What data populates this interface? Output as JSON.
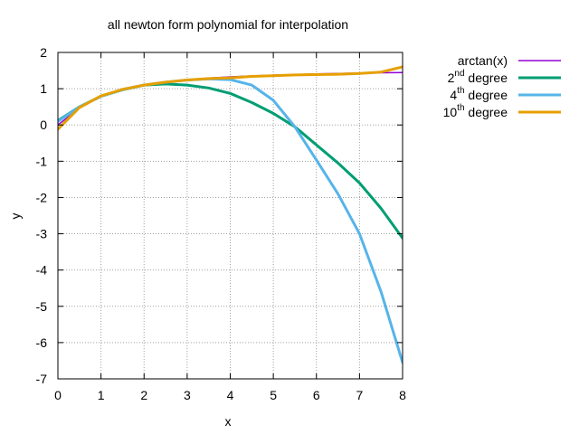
{
  "chart_data": {
    "type": "line",
    "title": "all newton form polynomial for interpolation",
    "xlabel": "x",
    "ylabel": "y",
    "xlim": [
      0,
      8
    ],
    "ylim": [
      -7,
      2
    ],
    "xticks": [
      0,
      1,
      2,
      3,
      4,
      5,
      6,
      7,
      8
    ],
    "yticks": [
      -7,
      -6,
      -5,
      -4,
      -3,
      -2,
      -1,
      0,
      1,
      2
    ],
    "grid": true,
    "legend_position": "right-outside",
    "series": [
      {
        "name": "arctan(x)",
        "legend": {
          "base": "arctan(x)",
          "sup": "",
          "rest": ""
        },
        "color": "#9400d3",
        "x": [
          0,
          0.5,
          1,
          1.5,
          2,
          2.5,
          3,
          3.5,
          4,
          4.5,
          5,
          5.5,
          6,
          6.5,
          7,
          7.5,
          8
        ],
        "y": [
          0,
          0.464,
          0.785,
          0.983,
          1.107,
          1.19,
          1.249,
          1.292,
          1.326,
          1.352,
          1.373,
          1.39,
          1.406,
          1.418,
          1.429,
          1.439,
          1.446
        ]
      },
      {
        "name": "2nd degree",
        "legend": {
          "base": "2",
          "sup": "nd",
          "rest": " degree"
        },
        "color": "#009e73",
        "x": [
          0,
          0.5,
          1,
          1.5,
          2,
          2.5,
          3,
          3.5,
          4,
          4.5,
          5,
          5.5,
          6,
          6.5,
          7,
          7.5,
          8
        ],
        "y": [
          0.12,
          0.5,
          0.79,
          0.97,
          1.1,
          1.13,
          1.1,
          1.02,
          0.87,
          0.62,
          0.32,
          -0.05,
          -0.55,
          -1.05,
          -1.6,
          -2.3,
          -3.12
        ]
      },
      {
        "name": "4th degree",
        "legend": {
          "base": "4",
          "sup": "th",
          "rest": " degree"
        },
        "color": "#56b4e9",
        "x": [
          0,
          0.5,
          1,
          1.5,
          2,
          2.5,
          3,
          3.5,
          4,
          4.5,
          5,
          5.5,
          6,
          6.5,
          7,
          7.5,
          8
        ],
        "y": [
          0.1,
          0.5,
          0.79,
          0.98,
          1.1,
          1.18,
          1.24,
          1.27,
          1.25,
          1.1,
          0.68,
          -0.05,
          -0.97,
          -1.9,
          -3.0,
          -4.6,
          -6.55
        ]
      },
      {
        "name": "10th degree",
        "legend": {
          "base": "10",
          "sup": "th",
          "rest": " degree"
        },
        "color": "#e69f00",
        "x": [
          0,
          0.5,
          1,
          1.5,
          2,
          2.5,
          3,
          3.5,
          4,
          4.5,
          5,
          5.5,
          6,
          6.5,
          7,
          7.5,
          8
        ],
        "y": [
          -0.12,
          0.48,
          0.8,
          0.98,
          1.1,
          1.18,
          1.24,
          1.28,
          1.3,
          1.34,
          1.36,
          1.38,
          1.39,
          1.4,
          1.42,
          1.46,
          1.6
        ]
      }
    ]
  }
}
